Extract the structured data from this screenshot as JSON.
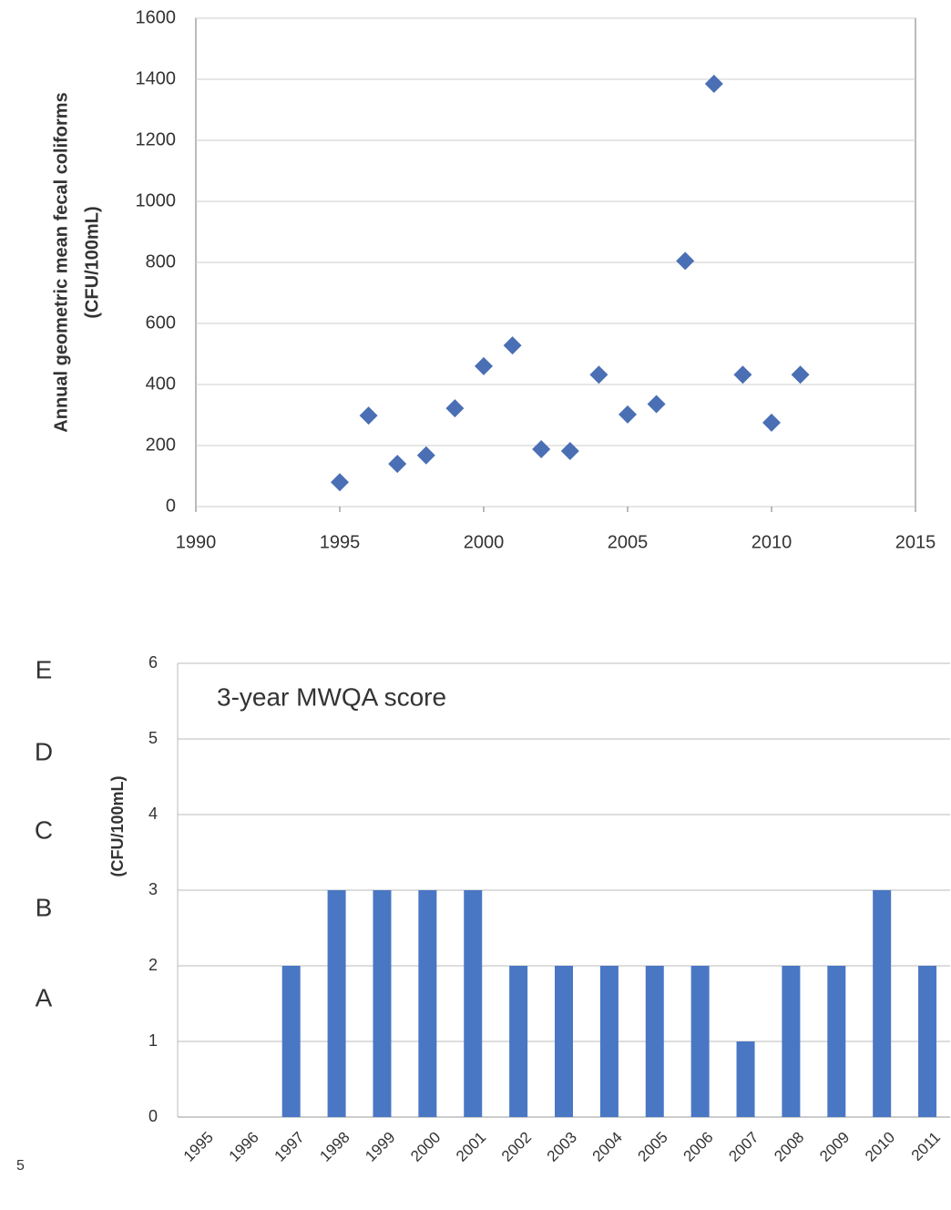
{
  "chart_data": [
    {
      "type": "scatter",
      "ylabel": [
        "Annual geometric mean fecal coliforms",
        "(CFU/100mL)"
      ],
      "x": [
        1995,
        1996,
        1997,
        1998,
        1999,
        2000,
        2001,
        2002,
        2003,
        2004,
        2005,
        2006,
        2007,
        2008,
        2009,
        2010,
        2011
      ],
      "series": [
        {
          "color": "#4a6fb5",
          "values": [
            80,
            298,
            140,
            168,
            322,
            460,
            528,
            188,
            182,
            432,
            302,
            336,
            805,
            1385,
            432,
            275,
            432
          ]
        }
      ],
      "xlim": [
        1990,
        2015
      ],
      "xticks": [
        1990,
        1995,
        2000,
        2005,
        2010,
        2015
      ],
      "ylim": [
        0,
        1600
      ],
      "yticks": [
        0,
        200,
        400,
        600,
        800,
        1000,
        1200,
        1400,
        1600
      ],
      "grid": true
    },
    {
      "type": "bar",
      "title": "3-year MWQA score",
      "ylabel": "(CFU/100mL)",
      "categories": [
        "1995",
        "1996",
        "1997",
        "1998",
        "1999",
        "2000",
        "2001",
        "2002",
        "2003",
        "2004",
        "2005",
        "2006",
        "2007",
        "2008",
        "2009",
        "2010",
        "2011"
      ],
      "values": [
        0,
        0,
        2,
        3,
        3,
        3,
        3,
        2,
        2,
        2,
        2,
        2,
        1,
        2,
        2,
        3,
        2
      ],
      "color": "#4a77c4",
      "ylim": [
        0,
        6
      ],
      "yticks": [
        0,
        1,
        2,
        3,
        4,
        5,
        6
      ],
      "grid": true,
      "grade_labels": [
        "E",
        "D",
        "C",
        "B",
        "A"
      ]
    }
  ],
  "page_number": "5"
}
